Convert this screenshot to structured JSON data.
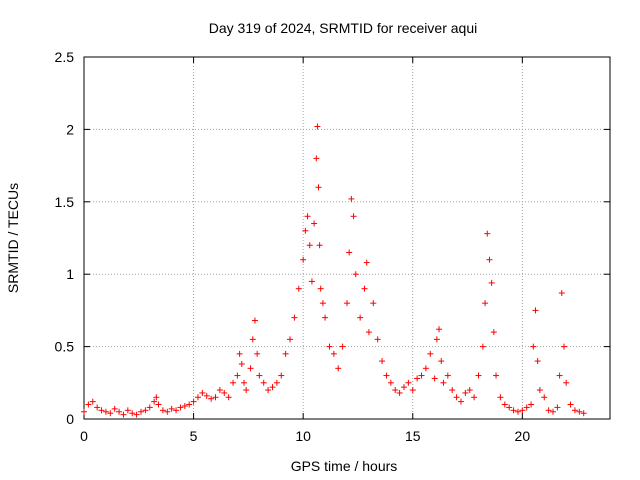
{
  "chart_data": {
    "type": "scatter",
    "title": "Day 319 of 2024, SRMTID for receiver aqui",
    "xlabel": "GPS time / hours",
    "ylabel": "SRMTID / TECUs",
    "xlim": [
      0,
      24
    ],
    "ylim": [
      0,
      2.5
    ],
    "xticks": [
      0,
      5,
      10,
      15,
      20
    ],
    "yticks": [
      0,
      0.5,
      1,
      1.5,
      2,
      2.5
    ],
    "xtick_labels": [
      "0",
      "5",
      "10",
      "15",
      "20"
    ],
    "ytick_labels": [
      "0",
      "0.5",
      "1",
      "1.5",
      "2",
      "2.5"
    ],
    "grid": true,
    "marker": "plus",
    "color": "#ff0000",
    "series": [
      {
        "name": "SRMTID",
        "x": [
          0.0,
          0.2,
          0.4,
          0.6,
          0.8,
          1.0,
          1.2,
          1.4,
          1.6,
          1.8,
          2.0,
          2.2,
          2.4,
          2.6,
          2.8,
          3.0,
          3.2,
          3.3,
          3.4,
          3.6,
          3.8,
          4.0,
          4.2,
          4.4,
          4.6,
          4.8,
          5.0,
          5.2,
          5.4,
          5.6,
          5.8,
          6.0,
          6.2,
          6.4,
          6.6,
          6.8,
          7.0,
          7.1,
          7.2,
          7.3,
          7.4,
          7.6,
          7.7,
          7.8,
          7.9,
          8.0,
          8.2,
          8.4,
          8.6,
          8.8,
          9.0,
          9.2,
          9.4,
          9.6,
          9.8,
          10.0,
          10.1,
          10.2,
          10.3,
          10.4,
          10.5,
          10.6,
          10.65,
          10.7,
          10.75,
          10.8,
          10.9,
          11.0,
          11.2,
          11.4,
          11.6,
          11.8,
          12.0,
          12.1,
          12.2,
          12.3,
          12.4,
          12.6,
          12.8,
          12.9,
          13.0,
          13.2,
          13.4,
          13.6,
          13.8,
          14.0,
          14.2,
          14.4,
          14.6,
          14.8,
          15.0,
          15.2,
          15.4,
          15.6,
          15.8,
          16.0,
          16.1,
          16.2,
          16.3,
          16.4,
          16.6,
          16.8,
          17.0,
          17.2,
          17.4,
          17.6,
          17.8,
          18.0,
          18.2,
          18.3,
          18.4,
          18.5,
          18.6,
          18.7,
          18.8,
          19.0,
          19.2,
          19.4,
          19.6,
          19.8,
          20.0,
          20.2,
          20.4,
          20.5,
          20.6,
          20.7,
          20.8,
          21.0,
          21.2,
          21.4,
          21.6,
          21.7,
          21.8,
          21.9,
          22.0,
          22.2,
          22.4,
          22.6,
          22.8
        ],
        "y": [
          0.05,
          0.1,
          0.12,
          0.08,
          0.06,
          0.05,
          0.04,
          0.07,
          0.05,
          0.03,
          0.06,
          0.04,
          0.03,
          0.05,
          0.06,
          0.08,
          0.12,
          0.15,
          0.1,
          0.06,
          0.05,
          0.07,
          0.06,
          0.08,
          0.09,
          0.1,
          0.12,
          0.15,
          0.18,
          0.16,
          0.14,
          0.15,
          0.2,
          0.18,
          0.15,
          0.25,
          0.3,
          0.45,
          0.38,
          0.25,
          0.2,
          0.35,
          0.55,
          0.68,
          0.45,
          0.3,
          0.25,
          0.2,
          0.22,
          0.25,
          0.3,
          0.45,
          0.55,
          0.7,
          0.9,
          1.1,
          1.3,
          1.4,
          1.2,
          0.95,
          1.35,
          1.8,
          2.02,
          1.6,
          1.2,
          0.9,
          0.8,
          0.7,
          0.5,
          0.45,
          0.35,
          0.5,
          0.8,
          1.15,
          1.52,
          1.4,
          1.0,
          0.7,
          0.9,
          1.08,
          0.6,
          0.8,
          0.55,
          0.4,
          0.3,
          0.25,
          0.2,
          0.18,
          0.22,
          0.25,
          0.2,
          0.28,
          0.3,
          0.35,
          0.45,
          0.28,
          0.55,
          0.62,
          0.4,
          0.25,
          0.3,
          0.2,
          0.15,
          0.12,
          0.18,
          0.2,
          0.15,
          0.3,
          0.5,
          0.8,
          1.28,
          1.1,
          0.94,
          0.6,
          0.3,
          0.15,
          0.1,
          0.08,
          0.06,
          0.05,
          0.06,
          0.08,
          0.1,
          0.5,
          0.75,
          0.4,
          0.2,
          0.15,
          0.06,
          0.05,
          0.08,
          0.3,
          0.87,
          0.5,
          0.25,
          0.1,
          0.06,
          0.05,
          0.04
        ]
      }
    ]
  }
}
